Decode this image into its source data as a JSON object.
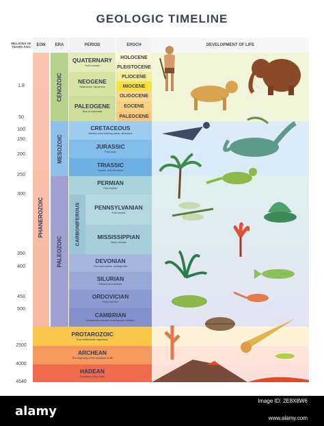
{
  "title": "GEOLOGIC TIMELINE",
  "headers": {
    "years": "MILLIONS OF YEARS AGO",
    "eon": "EON",
    "era": "ERA",
    "period": "PERIOD",
    "epoch": "EPOCH",
    "development": "DEVELOPMENT OF LIFE"
  },
  "ticks": [
    "1.8",
    "50",
    "100",
    "150",
    "200",
    "250",
    "300",
    "350",
    "400",
    "450",
    "500",
    "2500",
    "4000",
    "4540"
  ],
  "eons": {
    "phanerozoic": "PHANEROZOIC"
  },
  "eras": {
    "cenozoic": "CENOZOIC",
    "mesozoic": "MESOZOIC",
    "paleozoic": "PALEOZOIC"
  },
  "periods": {
    "quaternary": {
      "name": "QUATERNARY",
      "sub": "First humans"
    },
    "neogene": {
      "name": "NEOGENE",
      "sub": "Mastodons, hipparions"
    },
    "paleogene": {
      "name": "PALEOGENE",
      "sub": "Rise of mammals"
    },
    "cretaceous": {
      "name": "CRETACEOUS",
      "sub": "Modern seed bearing plants, dinosaurs"
    },
    "jurassic": {
      "name": "JURASSIC",
      "sub": "First birds"
    },
    "triassic": {
      "name": "TRIASSIC",
      "sub": "Cycads, first dinosaurs"
    },
    "permian": {
      "name": "PERMIAN",
      "sub": "First reptiles"
    },
    "carboniferous": {
      "name": "CARBONIFEROUS"
    },
    "pennsylvanian": {
      "name": "PENNSYLVANIAN",
      "sub": "First insects"
    },
    "mississippian": {
      "name": "MISSISSIPPIAN",
      "sub": "Many crinoids"
    },
    "devonian": {
      "name": "DEVONIAN",
      "sub": "First seed plants, cartilage fish"
    },
    "silurian": {
      "name": "SILURIAN",
      "sub": "Earliest land animals"
    },
    "ordovician": {
      "name": "ORDOVICIAN",
      "sub": "Early reef fish"
    },
    "cambrian": {
      "name": "CAMBRIAN",
      "sub": "Invertebrate animals, brachiopods, trilobites"
    },
    "protarozoic": {
      "name": "PROTAROZOIC",
      "sub": "First multicellular organisms"
    },
    "archean": {
      "name": "ARCHEAN",
      "sub": "The beginning of the formation of life"
    },
    "hadean": {
      "name": "HADEAN",
      "sub": "Formation of the Earth"
    }
  },
  "epochs": [
    "HOLOCENE",
    "PLEISTOCENE",
    "PLIOCENE",
    "MIOCENE",
    "OLIGOCENE",
    "EOCENE",
    "PALEOCENE"
  ],
  "watermark": {
    "logo": "alamy",
    "image_id": "Image ID: 2E8X8W6",
    "url": "www.alamy.com"
  }
}
